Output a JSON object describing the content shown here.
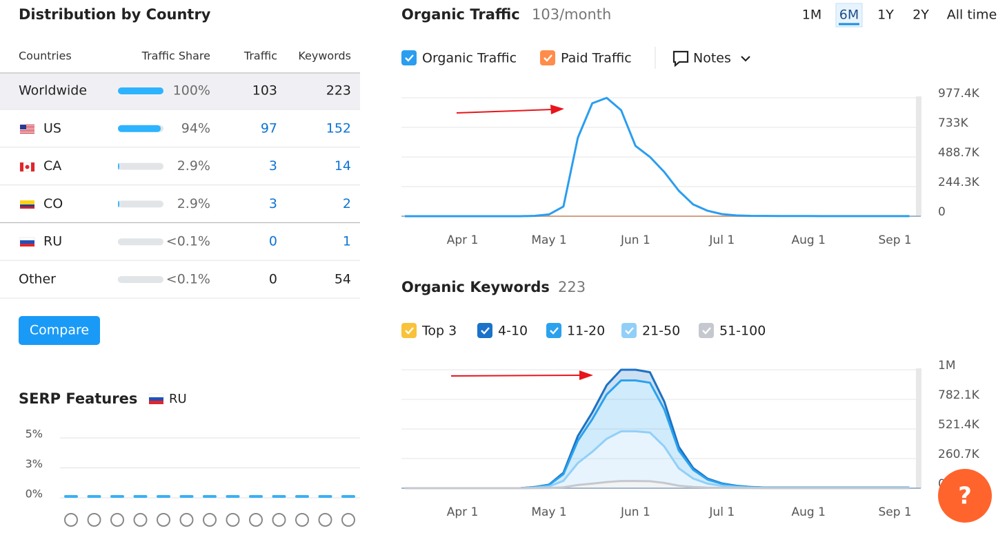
{
  "distribution": {
    "title": "Distribution by Country",
    "columns": [
      "Countries",
      "Traffic Share",
      "Traffic",
      "Keywords"
    ],
    "rows": [
      {
        "country": "Worldwide",
        "share": 100,
        "share_label": "100%",
        "traffic": 103,
        "keywords": 223
      },
      {
        "country": "US",
        "share": 94,
        "share_label": "94%",
        "traffic": 97,
        "keywords": 152
      },
      {
        "country": "CA",
        "share": 2.9,
        "share_label": "2.9%",
        "traffic": 3,
        "keywords": 14
      },
      {
        "country": "CO",
        "share": 2.9,
        "share_label": "2.9%",
        "traffic": 3,
        "keywords": 2
      },
      {
        "country": "RU",
        "share": 0.1,
        "share_label": "<0.1%",
        "traffic": 0,
        "keywords": 1
      },
      {
        "country": "Other",
        "share": 0.1,
        "share_label": "<0.1%",
        "traffic": 0,
        "keywords": 54
      }
    ],
    "button": "Compare"
  },
  "serp": {
    "title": "SERP Features",
    "country": "RU",
    "chart": {
      "type": "bar",
      "values": [
        0,
        0,
        0,
        0,
        0,
        0,
        0,
        0,
        0,
        0,
        0,
        0,
        0
      ],
      "color": "#3ab0f5",
      "ylim": [
        0,
        5
      ],
      "yticks": [
        {
          "value": 0,
          "label": "0%"
        },
        {
          "value": 2.5,
          "label": "3%"
        },
        {
          "value": 5,
          "label": "5%"
        }
      ],
      "grid": true
    }
  },
  "traffic": {
    "title": "Organic Traffic",
    "subtitle": "103/month",
    "periods": [
      "1M",
      "6M",
      "1Y",
      "2Y",
      "All time"
    ],
    "selected_period": 1,
    "notes": "Notes",
    "chart": {
      "type": "line",
      "categories": [
        null,
        null,
        null,
        null,
        "Apr 1",
        null,
        null,
        null,
        null,
        null,
        "May 1",
        null,
        null,
        null,
        null,
        null,
        "Jun 1",
        null,
        null,
        null,
        null,
        null,
        "Jul 1",
        null,
        null,
        null,
        null,
        null,
        "Aug 1",
        null,
        null,
        null,
        null,
        null,
        "Sep 1",
        null
      ],
      "series": [
        {
          "name": "Organic Traffic",
          "color": "#2a9df0",
          "values": [
            0,
            0,
            0,
            0,
            0,
            0,
            0,
            0,
            0,
            3000,
            15000,
            80000,
            648000,
            932000,
            977000,
            875000,
            580000,
            489000,
            364000,
            210000,
            97000,
            45000,
            17000,
            6000,
            3000,
            2000,
            1500,
            1000,
            1000,
            800,
            800,
            600,
            600,
            500,
            500,
            500
          ]
        },
        {
          "name": "Paid Traffic",
          "color": "#ff8c4b",
          "values": [
            0,
            0,
            0,
            0,
            0,
            0,
            0,
            0,
            0,
            0,
            0,
            0,
            0,
            0,
            0,
            0,
            0,
            0,
            0,
            0,
            0,
            0,
            0,
            0,
            0,
            0,
            0,
            0,
            0,
            0,
            0,
            0,
            0,
            0,
            0,
            0
          ]
        }
      ],
      "ylim": [
        0,
        977400
      ],
      "yticks": [
        0,
        {
          "value": 244300,
          "label": "244.3K"
        },
        {
          "value": 488700,
          "label": "488.7K"
        },
        {
          "value": 733000,
          "label": "733K"
        },
        {
          "value": 977400,
          "label": "977.4K"
        }
      ],
      "grid": true
    }
  },
  "keywords": {
    "title": "Organic Keywords",
    "subtitle": "223",
    "chart": {
      "type": "area",
      "stacked": true,
      "categories": [
        null,
        null,
        null,
        null,
        "Apr 1",
        null,
        null,
        null,
        null,
        null,
        "May 1",
        null,
        null,
        null,
        null,
        null,
        "Jun 1",
        null,
        null,
        null,
        null,
        null,
        "Jul 1",
        null,
        null,
        null,
        null,
        null,
        "Aug 1",
        null,
        null,
        null,
        null,
        null,
        "Sep 1",
        null
      ],
      "series": [
        {
          "name": "Top 3",
          "color": "#f8c23a",
          "values": [
            0,
            0,
            0,
            0,
            0,
            0,
            0,
            0,
            0,
            0,
            0,
            0,
            0,
            0,
            0,
            0,
            0,
            0,
            0,
            0,
            0,
            0,
            0,
            0,
            0,
            0,
            0,
            0,
            0,
            0,
            0,
            0,
            0,
            0,
            0,
            0
          ]
        },
        {
          "name": "4-10",
          "color": "#1a72c9",
          "values": [
            0,
            0,
            0,
            0,
            0,
            0,
            0,
            0,
            0,
            900,
            2800,
            12000,
            41000,
            60000,
            82000,
            94000,
            94000,
            92000,
            68000,
            33000,
            16000,
            7500,
            3800,
            1900,
            900,
            500,
            500,
            500,
            500,
            500,
            500,
            500,
            500,
            500,
            500,
            500
          ]
        },
        {
          "name": "11-20",
          "color": "#2aa2ee",
          "values": [
            0,
            0,
            0,
            0,
            0,
            0,
            0,
            0,
            0,
            4500,
            13500,
            58000,
            197000,
            287000,
            390000,
            448000,
            448000,
            439000,
            327000,
            157000,
            76000,
            36000,
            18000,
            9000,
            4500,
            2200,
            2200,
            2200,
            2200,
            2200,
            2200,
            2200,
            2200,
            2200,
            2200,
            2200
          ]
        },
        {
          "name": "21-50",
          "color": "#91cff8",
          "values": [
            0,
            0,
            0,
            0,
            0,
            0,
            0,
            0,
            0,
            4400,
            13000,
            57000,
            193000,
            280000,
            381000,
            438000,
            438000,
            429000,
            320000,
            153000,
            74000,
            35000,
            17500,
            8800,
            4400,
            2200,
            2200,
            2200,
            2200,
            2200,
            2200,
            2200,
            2200,
            2200,
            2200,
            2200
          ]
        },
        {
          "name": "51-100",
          "color": "#c5c8ce",
          "values": [
            0,
            0,
            0,
            0,
            0,
            0,
            0,
            0,
            0,
            600,
            1900,
            8000,
            28000,
            40000,
            54000,
            63000,
            63000,
            61000,
            46000,
            22000,
            11000,
            5000,
            2500,
            1300,
            600,
            300,
            300,
            300,
            300,
            300,
            300,
            300,
            300,
            300,
            300,
            300
          ]
        }
      ],
      "ylim": [
        0,
        1042800
      ],
      "yticks": [
        0,
        {
          "value": 260700,
          "label": "260.7K"
        },
        {
          "value": 521400,
          "label": "521.4K"
        },
        {
          "value": 782100,
          "label": "782.1K"
        },
        {
          "value": 1042800,
          "label": "1M"
        }
      ],
      "grid": true
    }
  },
  "help": "?"
}
